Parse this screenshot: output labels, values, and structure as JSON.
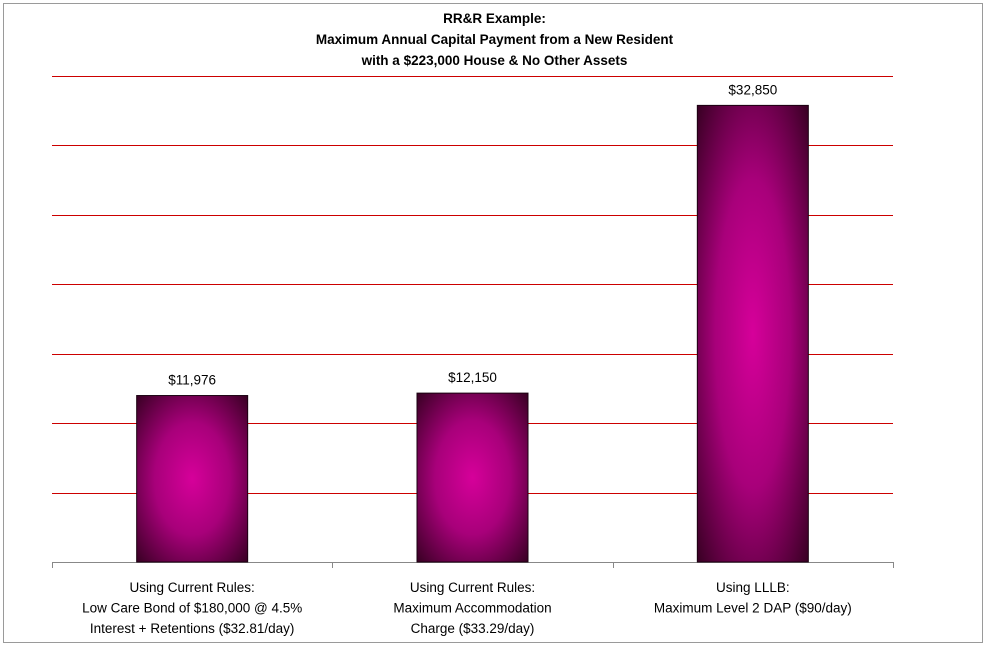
{
  "chart_data": {
    "type": "bar",
    "title_lines": [
      "RR&R Example:",
      "Maximum Annual Capital Payment from a New Resident",
      "with a $223,000 House & No Other Assets"
    ],
    "categories": [
      [
        "Using Current Rules:",
        "Low Care Bond of $180,000 @ 4.5%",
        "Interest + Retentions ($32.81/day)"
      ],
      [
        "Using Current Rules:",
        "Maximum Accommodation",
        "Charge ($33.29/day)"
      ],
      [
        "Using LLLB:",
        "Maximum Level 2 DAP ($90/day)"
      ]
    ],
    "values": [
      11976,
      12150,
      32850
    ],
    "data_labels": [
      "$11,976",
      "$12,150",
      "$32,850"
    ],
    "ylim": [
      0,
      35000
    ],
    "y_gridline_step": 5000,
    "y_tick_labels_shown": false,
    "grid": true,
    "grid_color": "#cc0000",
    "bar_color_center": "#d6009a",
    "bar_color_edge": "#2a0018",
    "xlabel": "",
    "ylabel": ""
  }
}
